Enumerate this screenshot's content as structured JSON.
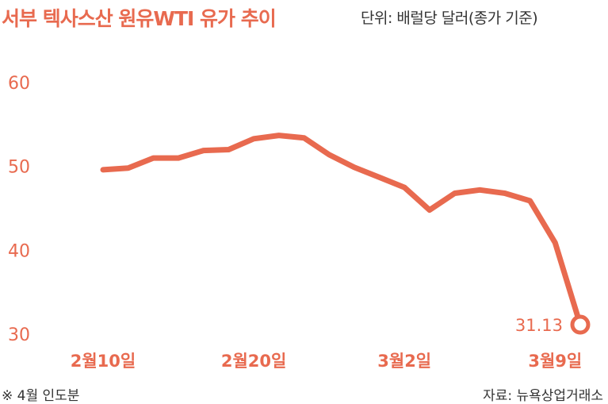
{
  "header": {
    "title": "서부 텍사스산 원유WTI 유가 추이",
    "unit": "단위: 배럴당 달러(종가 기준)"
  },
  "footer": {
    "note": "※ 4월 인도분",
    "source": "자료: 뉴욕상업거래소"
  },
  "colors": {
    "accent": "#e86a4f"
  },
  "chart_data": {
    "type": "line",
    "title": "서부 텍사스산 원유WTI 유가 추이",
    "ylabel": "",
    "xlabel": "",
    "ylim": [
      30,
      60
    ],
    "yticks": [
      "60",
      "50",
      "40",
      "30"
    ],
    "xtick_labels": [
      {
        "label": "2월10일",
        "index": 0
      },
      {
        "label": "2월20일",
        "index": 6
      },
      {
        "label": "3월2일",
        "index": 12
      },
      {
        "label": "3월9일",
        "index": 18
      }
    ],
    "series": [
      {
        "values": [
          49.6,
          49.8,
          51.0,
          51.0,
          51.9,
          52.0,
          53.3,
          53.7,
          53.4,
          51.4,
          49.9,
          48.7,
          47.5,
          44.8,
          46.8,
          47.2,
          46.8,
          45.9,
          40.9,
          31.13
        ]
      }
    ],
    "data_labels": [
      {
        "index": 19,
        "text": "31.13"
      }
    ],
    "grid": false,
    "legend": "none"
  }
}
